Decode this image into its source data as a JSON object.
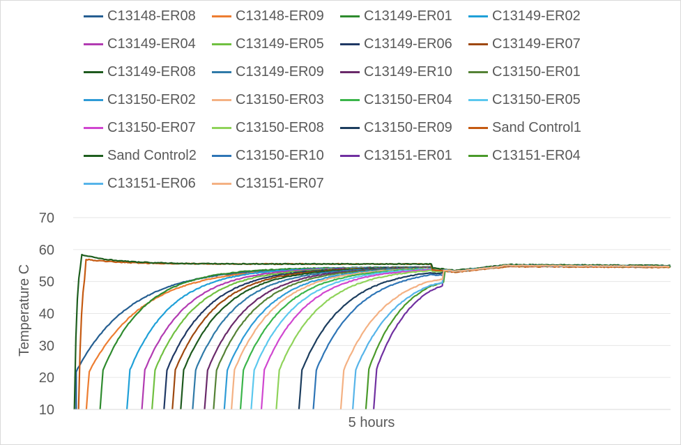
{
  "chart_data": {
    "type": "line",
    "xlabel": "5 hours",
    "ylabel": "Temperature C",
    "ylim": [
      10,
      70
    ],
    "yticks": [
      "10",
      "20",
      "30",
      "40",
      "50",
      "60",
      "70"
    ],
    "grid": "horizontal",
    "legend_position": "top",
    "x_range": [
      0,
      100
    ],
    "series": [
      {
        "name": "C13148-ER08",
        "color": "#255e91",
        "start": 0.5,
        "onset": 0.0,
        "tau": 9,
        "plateau": 54
      },
      {
        "name": "C13148-ER09",
        "color": "#ed7d31",
        "start": 2.2,
        "onset": 2.2,
        "tau": 9,
        "plateau": 54
      },
      {
        "name": "C13149-ER01",
        "color": "#2e8b2e",
        "start": 4.5,
        "onset": 4.5,
        "tau": 7,
        "plateau": 54
      },
      {
        "name": "C13149-ER02",
        "color": "#1fa0d8",
        "start": 9.0,
        "onset": 9.0,
        "tau": 7,
        "plateau": 54
      },
      {
        "name": "C13149-ER04",
        "color": "#b23bb2",
        "start": 11.5,
        "onset": 11.5,
        "tau": 7,
        "plateau": 54
      },
      {
        "name": "C13149-ER05",
        "color": "#70c040",
        "start": 13.2,
        "onset": 13.2,
        "tau": 7,
        "plateau": 54
      },
      {
        "name": "C13149-ER06",
        "color": "#1f3864",
        "start": 15.2,
        "onset": 15.2,
        "tau": 7,
        "plateau": 54
      },
      {
        "name": "C13149-ER07",
        "color": "#9e480e",
        "start": 16.6,
        "onset": 16.6,
        "tau": 7,
        "plateau": 54
      },
      {
        "name": "C13149-ER08",
        "color": "#1e5a1e",
        "start": 18.0,
        "onset": 18.0,
        "tau": 7,
        "plateau": 54
      },
      {
        "name": "C13149-ER09",
        "color": "#2f7aa8",
        "start": 20.0,
        "onset": 20.0,
        "tau": 7,
        "plateau": 54
      },
      {
        "name": "C13149-ER10",
        "color": "#6a2a6a",
        "start": 22.0,
        "onset": 22.0,
        "tau": 7,
        "plateau": 54
      },
      {
        "name": "C13150-ER01",
        "color": "#548235",
        "start": 23.5,
        "onset": 23.5,
        "tau": 7,
        "plateau": 54
      },
      {
        "name": "C13150-ER02",
        "color": "#2e9bd6",
        "start": 25.3,
        "onset": 25.3,
        "tau": 7,
        "plateau": 54
      },
      {
        "name": "C13150-ER03",
        "color": "#f4b183",
        "start": 26.5,
        "onset": 26.5,
        "tau": 7,
        "plateau": 54
      },
      {
        "name": "C13150-ER04",
        "color": "#3bb54a",
        "start": 28.0,
        "onset": 28.0,
        "tau": 7,
        "plateau": 54
      },
      {
        "name": "C13150-ER05",
        "color": "#5bc8ee",
        "start": 29.8,
        "onset": 29.8,
        "tau": 7,
        "plateau": 54
      },
      {
        "name": "C13150-ER07",
        "color": "#d046d0",
        "start": 31.5,
        "onset": 31.5,
        "tau": 7,
        "plateau": 54
      },
      {
        "name": "C13150-ER08",
        "color": "#8fd35a",
        "start": 34.0,
        "onset": 34.0,
        "tau": 7,
        "plateau": 54
      },
      {
        "name": "C13150-ER09",
        "color": "#1c3d5e",
        "start": 37.8,
        "onset": 37.8,
        "tau": 7,
        "plateau": 54
      },
      {
        "name": "Sand Control1",
        "color": "#c55a11",
        "start": 0.9,
        "onset": 0.9,
        "tau": 0.5,
        "plateau": 57
      },
      {
        "name": "Sand Control2",
        "color": "#1e5e1e",
        "start": 0.2,
        "onset": 0.2,
        "tau": 0.4,
        "plateau": 58.5
      },
      {
        "name": "C13150-ER10",
        "color": "#2e75b6",
        "start": 40.2,
        "onset": 40.2,
        "tau": 7,
        "plateau": 54
      },
      {
        "name": "C13151-ER01",
        "color": "#7030a0",
        "start": 50.3,
        "onset": 50.3,
        "tau": 6,
        "plateau": 54
      },
      {
        "name": "C13151-ER04",
        "color": "#4a9a2a",
        "start": 49.0,
        "onset": 49.0,
        "tau": 6,
        "plateau": 54
      },
      {
        "name": "C13151-ER06",
        "color": "#56b4e9",
        "start": 46.8,
        "onset": 46.8,
        "tau": 7,
        "plateau": 54
      },
      {
        "name": "C13151-ER07",
        "color": "#f4b183",
        "start": 44.8,
        "onset": 44.8,
        "tau": 7,
        "plateau": 54
      }
    ]
  }
}
